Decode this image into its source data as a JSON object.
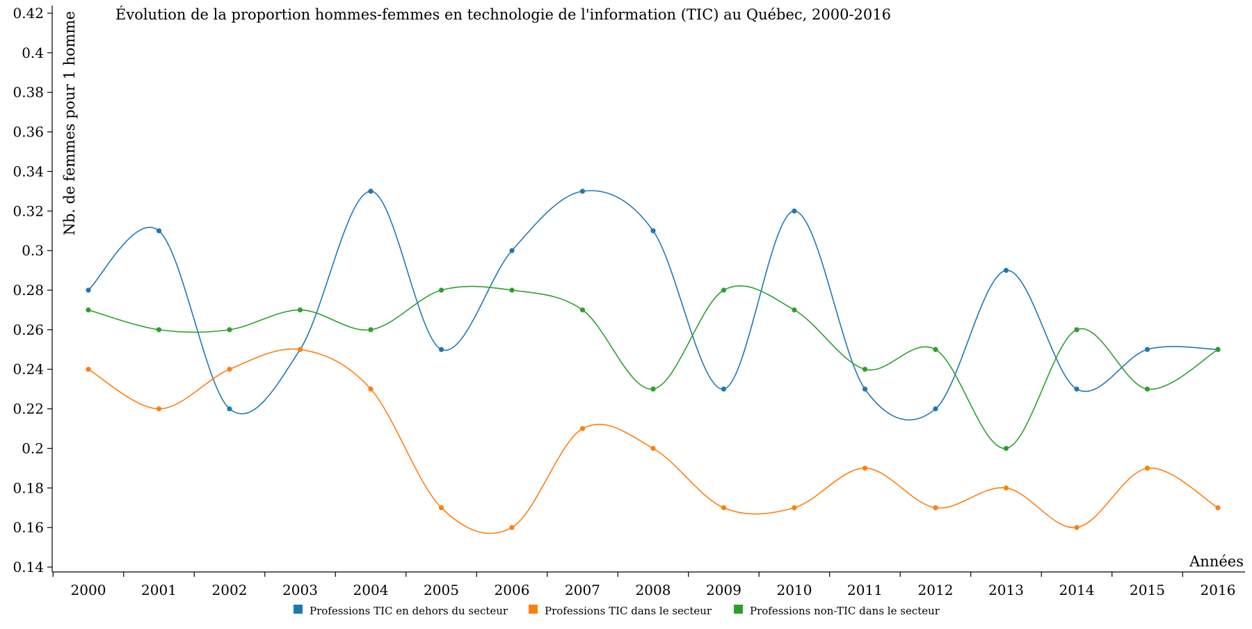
{
  "chart_data": {
    "type": "line",
    "title": "Évolution de la proportion hommes-femmes en technologie de l'information (TIC) au Québec, 2000-2016",
    "xlabel": "Années",
    "ylabel": "Nb. de femmes pour 1 homme",
    "ylim": [
      0.14,
      0.42
    ],
    "yticks": [
      "0.14",
      "0.16",
      "0.18",
      "0.2",
      "0.22",
      "0.24",
      "0.26",
      "0.28",
      "0.3",
      "0.32",
      "0.34",
      "0.36",
      "0.38",
      "0.4",
      "0.42"
    ],
    "categories": [
      "2000",
      "2001",
      "2002",
      "2003",
      "2004",
      "2005",
      "2006",
      "2007",
      "2008",
      "2009",
      "2010",
      "2011",
      "2012",
      "2013",
      "2014",
      "2015",
      "2016"
    ],
    "grid": false,
    "legend_position": "bottom",
    "series": [
      {
        "name": "Professions TIC en dehors du secteur",
        "color": "#1f77b4",
        "values": [
          0.28,
          0.31,
          0.22,
          0.25,
          0.33,
          0.25,
          0.3,
          0.33,
          0.31,
          0.23,
          0.32,
          0.23,
          0.22,
          0.29,
          0.23,
          0.25,
          0.25
        ]
      },
      {
        "name": "Professions TIC dans le secteur",
        "color": "#ff7f0e",
        "values": [
          0.24,
          0.22,
          0.24,
          0.25,
          0.23,
          0.17,
          0.16,
          0.21,
          0.2,
          0.17,
          0.17,
          0.19,
          0.17,
          0.18,
          0.16,
          0.19,
          0.17
        ]
      },
      {
        "name": "Professions non-TIC dans le secteur",
        "color": "#2ca02c",
        "values": [
          0.27,
          0.26,
          0.26,
          0.27,
          0.26,
          0.28,
          0.28,
          0.27,
          0.23,
          0.28,
          0.27,
          0.24,
          0.25,
          0.2,
          0.26,
          0.23,
          0.25
        ]
      }
    ]
  }
}
